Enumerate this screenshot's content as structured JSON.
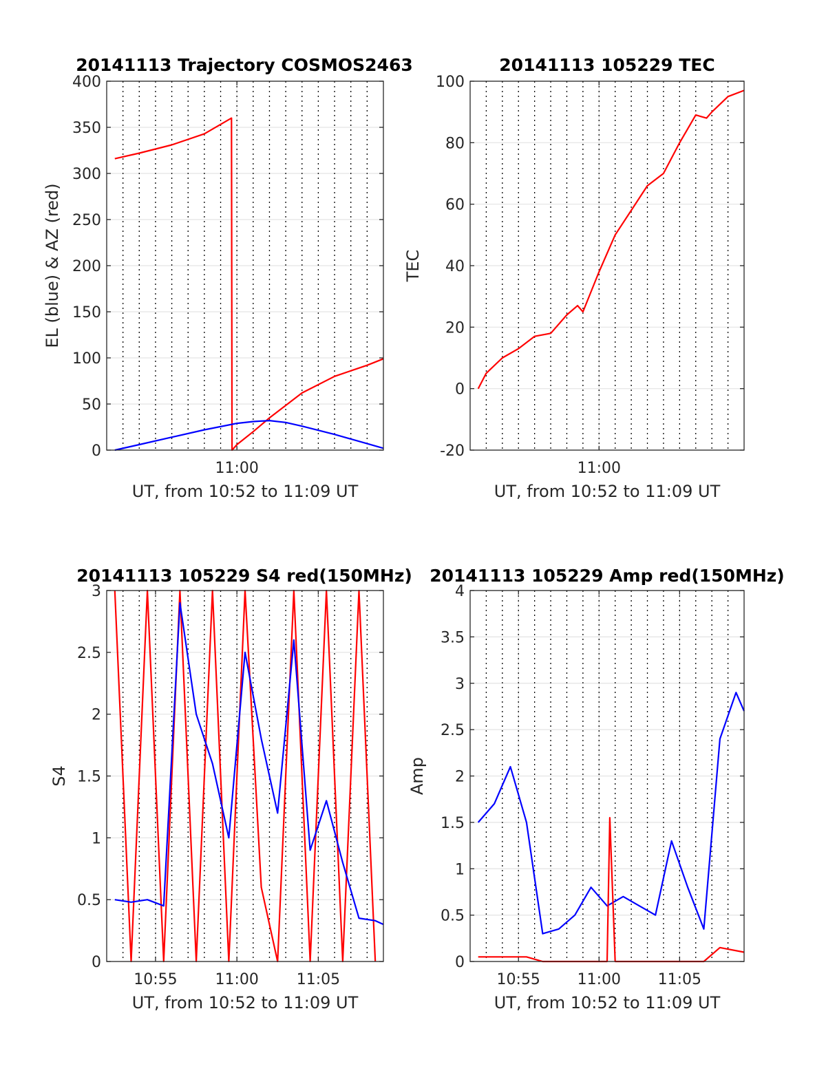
{
  "chart_data": [
    {
      "type": "line",
      "title": "20141113 Trajectory COSMOS2463",
      "xlabel": "UT, from 10:52 to 11:09 UT",
      "ylabel": "EL (blue) & AZ (red)",
      "xlim": [
        "10:52",
        "11:09"
      ],
      "ylim": [
        0,
        400
      ],
      "xticks": [
        "11:00"
      ],
      "yticks": [
        0,
        50,
        100,
        150,
        200,
        250,
        300,
        350,
        400
      ],
      "grid": true,
      "series": [
        {
          "color": "#ff0000",
          "x": [
            "10:52:30",
            "10:54",
            "10:56",
            "10:58",
            "10:59:40",
            "10:59:42",
            "11:00",
            "11:01",
            "11:02",
            "11:04",
            "11:06",
            "11:08",
            "11:09"
          ],
          "y": [
            316,
            322,
            331,
            343,
            360,
            0,
            6,
            20,
            35,
            62,
            80,
            92,
            99
          ]
        },
        {
          "color": "#0000ff",
          "x": [
            "10:52:30",
            "10:54",
            "10:56",
            "10:58",
            "10:59:42",
            "11:00",
            "11:01",
            "11:02",
            "11:03",
            "11:04",
            "11:06",
            "11:08",
            "11:09"
          ],
          "y": [
            0,
            6,
            14,
            22,
            28,
            29,
            31,
            32,
            30,
            26,
            17,
            7,
            2
          ]
        }
      ]
    },
    {
      "type": "line",
      "title": "20141113 105229 TEC",
      "xlabel": "UT, from 10:52 to 11:09 UT",
      "ylabel": "TEC",
      "xlim": [
        "10:52",
        "11:09"
      ],
      "ylim": [
        -20,
        100
      ],
      "xticks": [
        "11:00"
      ],
      "yticks": [
        -20,
        0,
        20,
        40,
        60,
        80,
        100
      ],
      "grid": true,
      "series": [
        {
          "color": "#ff0000",
          "x": [
            "10:52:30",
            "10:53",
            "10:54",
            "10:55",
            "10:56",
            "10:57",
            "10:58",
            "10:58:40",
            "10:59",
            "11:00",
            "11:01",
            "11:02",
            "11:03",
            "11:04",
            "11:05",
            "11:06",
            "11:06:40",
            "11:07",
            "11:08",
            "11:09"
          ],
          "y": [
            0,
            5,
            10,
            13,
            17,
            18,
            24,
            27,
            25,
            38,
            50,
            58,
            66,
            70,
            80,
            89,
            88,
            90,
            95,
            97
          ]
        }
      ]
    },
    {
      "type": "line",
      "title": "20141113 105229 S4 red(150MHz)",
      "xlabel": "UT, from 10:52 to 11:09 UT",
      "ylabel": "S4",
      "xlim": [
        "10:52",
        "11:09"
      ],
      "ylim": [
        0,
        3
      ],
      "xticks": [
        "10:55",
        "11:00",
        "11:05"
      ],
      "yticks": [
        0,
        0.5,
        1,
        1.5,
        2,
        2.5,
        3
      ],
      "grid": true,
      "series": [
        {
          "color": "#ff0000",
          "x": [
            "10:52:30",
            "10:53:30",
            "10:54:30",
            "10:55:30",
            "10:56:30",
            "10:57:30",
            "10:58:30",
            "10:59:30",
            "11:00:30",
            "11:01:30",
            "11:02:30",
            "11:03:30",
            "11:04:30",
            "11:05:30",
            "11:06:30",
            "11:07:30",
            "11:08:30"
          ],
          "y": [
            3,
            0,
            3,
            0,
            3,
            0,
            3,
            0,
            3,
            0.6,
            0,
            3,
            0,
            3,
            0,
            3,
            0
          ]
        },
        {
          "color": "#0000ff",
          "x": [
            "10:52:30",
            "10:53:30",
            "10:54:30",
            "10:55:30",
            "10:56:30",
            "10:57:30",
            "10:58:30",
            "10:59:30",
            "11:00:30",
            "11:01:30",
            "11:02:30",
            "11:03:30",
            "11:04:30",
            "11:05:30",
            "11:06:30",
            "11:07:30",
            "11:08:30",
            "11:09"
          ],
          "y": [
            0.5,
            0.48,
            0.5,
            0.45,
            2.9,
            2.0,
            1.6,
            1.0,
            2.5,
            1.8,
            1.2,
            2.6,
            0.9,
            1.3,
            0.8,
            0.35,
            0.33,
            0.3
          ]
        }
      ]
    },
    {
      "type": "line",
      "title": "20141113 105229 Amp red(150MHz)",
      "xlabel": "UT, from 10:52 to 11:09 UT",
      "ylabel": "Amp",
      "xlim": [
        "10:52",
        "11:09"
      ],
      "ylim": [
        0,
        4
      ],
      "xticks": [
        "10:55",
        "11:00",
        "11:05"
      ],
      "yticks": [
        0,
        0.5,
        1,
        1.5,
        2,
        2.5,
        3,
        3.5,
        4
      ],
      "grid": true,
      "series": [
        {
          "color": "#0000ff",
          "x": [
            "10:52:30",
            "10:53:30",
            "10:54:30",
            "10:55:30",
            "10:56:30",
            "10:57:30",
            "10:58:30",
            "10:59:30",
            "11:00:30",
            "11:01:30",
            "11:02:30",
            "11:03:30",
            "11:04:30",
            "11:05:30",
            "11:06:30",
            "11:07:30",
            "11:08:30",
            "11:09"
          ],
          "y": [
            1.5,
            1.7,
            2.1,
            1.5,
            0.3,
            0.35,
            0.5,
            0.8,
            0.6,
            0.7,
            0.6,
            0.5,
            1.3,
            0.8,
            0.35,
            2.4,
            2.9,
            2.7
          ]
        },
        {
          "color": "#ff0000",
          "x": [
            "10:52:30",
            "10:55:30",
            "10:56:30",
            "10:59:30",
            "11:00:30",
            "11:00:40",
            "11:01",
            "11:06:30",
            "11:07:30",
            "11:09"
          ],
          "y": [
            0.05,
            0.05,
            0.0,
            0.0,
            0.0,
            1.55,
            0.0,
            0.0,
            0.15,
            0.1
          ]
        }
      ]
    }
  ]
}
